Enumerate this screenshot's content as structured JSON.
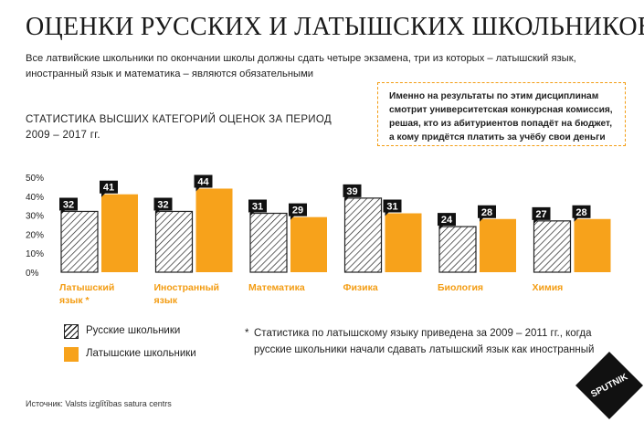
{
  "title": "ОЦЕНКИ РУССКИХ И ЛАТЫШСКИХ ШКОЛЬНИКОВ",
  "subtitle": "Все латвийские школьники по окончании школы должны сдать четыре экзамена, три из которых – латышский язык, иностранный язык и математика – являются обязательными",
  "callout": "Именно на результаты по этим дисциплинам смотрит университетская конкурсная комиссия, решая, кто из абитуриентов попадёт на бюджет, а кому придётся платить за учёбу свои деньги",
  "stat_title_line1": "СТАТИСТИКА ВЫСШИХ КАТЕГОРИЙ ОЦЕНОК ЗА ПЕРИОД",
  "stat_title_line2": "2009 – 2017 гг.",
  "legend": {
    "russian": "Русские школьники",
    "latvian": "Латышские школьники"
  },
  "footnote_star": "*",
  "footnote": "Статистика по латышскому языку приведена за 2009 – 2011 гг., когда русские школьники начали сдавать латышский язык как иностранный",
  "source": "Источник: Valsts izglītības satura centrs",
  "logo_text": "SPUTNIK",
  "colors": {
    "orange": "#f7a21b",
    "category_label": "#f39c12",
    "dark": "#222222"
  },
  "chart_data": {
    "type": "bar",
    "title": "СТАТИСТИКА ВЫСШИХ КАТЕГОРИЙ ОЦЕНОК ЗА ПЕРИОД 2009 – 2017 гг.",
    "categories": [
      [
        "Латышский",
        "язык *"
      ],
      [
        "Иностранный",
        "язык"
      ],
      [
        "Математика"
      ],
      [
        "Физика"
      ],
      [
        "Биология"
      ],
      [
        "Химия"
      ]
    ],
    "series": [
      {
        "name": "Русские школьники",
        "values": [
          32,
          32,
          31,
          39,
          24,
          27
        ]
      },
      {
        "name": "Латышские школьники",
        "values": [
          41,
          44,
          29,
          31,
          28,
          28
        ]
      }
    ],
    "yticks": [
      "50%",
      "40%",
      "30%",
      "20%",
      "10%",
      "0%"
    ],
    "ylim": [
      0,
      50
    ],
    "xlabel": "",
    "ylabel": ""
  }
}
